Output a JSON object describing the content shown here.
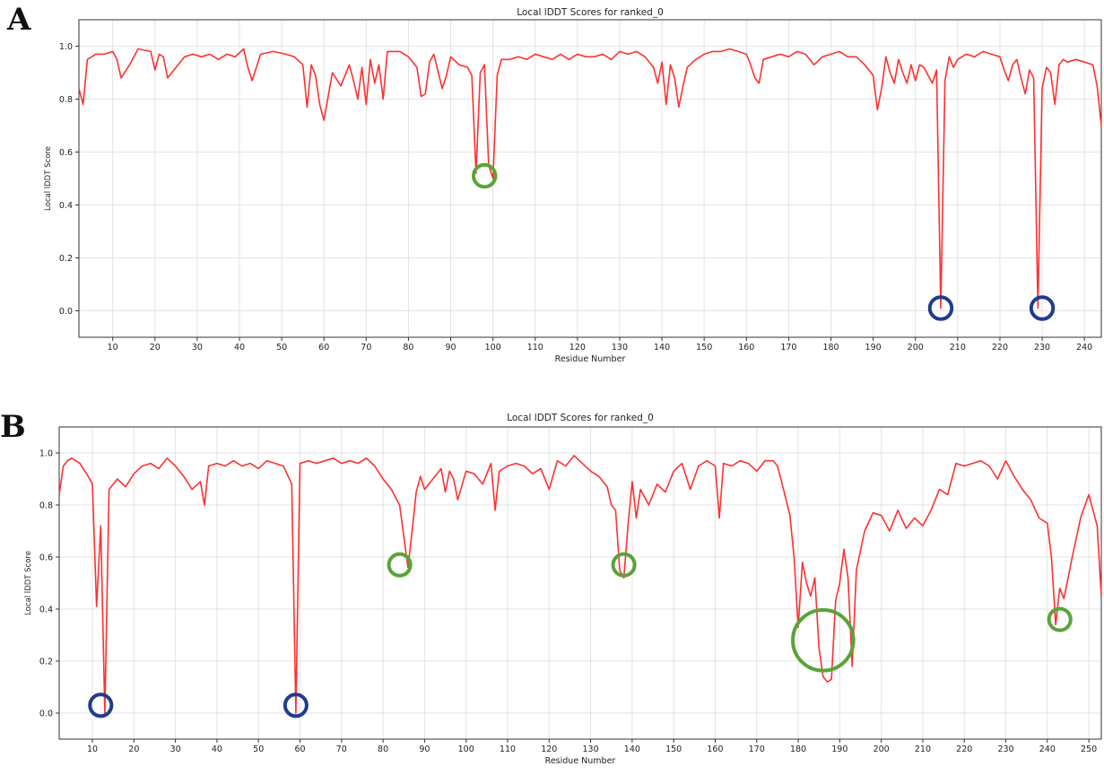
{
  "figure": {
    "panels": [
      {
        "letter": "A"
      },
      {
        "letter": "B"
      }
    ]
  },
  "chart_data": [
    {
      "type": "line",
      "title": "Local lDDT Scores for ranked_0",
      "xlabel": "Residue Number",
      "ylabel": "Local lDDT Score",
      "xlim": [
        2,
        244
      ],
      "ylim": [
        -0.1,
        1.1
      ],
      "xticks": [
        10,
        20,
        30,
        40,
        50,
        60,
        70,
        80,
        90,
        100,
        110,
        120,
        130,
        140,
        150,
        160,
        170,
        180,
        190,
        200,
        210,
        220,
        230,
        240
      ],
      "yticks": [
        0.0,
        0.2,
        0.4,
        0.6,
        0.8,
        1.0
      ],
      "grid": true,
      "line_color": "#ff3030",
      "series": [
        {
          "x": [
            2,
            3,
            4,
            6,
            8,
            10,
            11,
            12,
            14,
            16,
            19,
            20,
            21,
            22,
            23,
            25,
            27,
            29,
            31,
            33,
            35,
            37,
            39,
            41,
            42,
            43,
            45,
            48,
            51,
            53,
            55,
            56,
            57,
            58,
            59,
            60,
            62,
            64,
            66,
            67,
            68,
            69,
            70,
            71,
            72,
            73,
            74,
            75,
            76,
            78,
            80,
            82,
            83,
            84,
            85,
            86,
            88,
            89,
            90,
            92,
            94,
            95,
            96,
            97,
            98,
            99,
            100,
            101,
            102,
            104,
            106,
            108,
            110,
            112,
            114,
            116,
            118,
            120,
            122,
            124,
            126,
            128,
            130,
            132,
            134,
            136,
            138,
            139,
            140,
            141,
            142,
            143,
            144,
            145,
            146,
            148,
            150,
            152,
            154,
            156,
            158,
            160,
            161,
            162,
            163,
            164,
            166,
            168,
            170,
            172,
            174,
            176,
            178,
            180,
            182,
            184,
            186,
            188,
            190,
            191,
            192,
            193,
            194,
            195,
            196,
            197,
            198,
            199,
            200,
            201,
            202,
            203,
            204,
            205,
            206,
            207,
            208,
            209,
            210,
            212,
            214,
            216,
            218,
            220,
            221,
            222,
            223,
            224,
            225,
            226,
            227,
            228,
            229,
            230,
            231,
            232,
            233,
            234,
            235,
            236,
            238,
            240,
            242,
            243,
            244
          ],
          "y": [
            0.84,
            0.78,
            0.95,
            0.97,
            0.97,
            0.98,
            0.95,
            0.88,
            0.93,
            0.99,
            0.98,
            0.91,
            0.97,
            0.96,
            0.88,
            0.92,
            0.96,
            0.97,
            0.96,
            0.97,
            0.95,
            0.97,
            0.96,
            0.99,
            0.92,
            0.87,
            0.97,
            0.98,
            0.97,
            0.96,
            0.93,
            0.77,
            0.93,
            0.89,
            0.78,
            0.72,
            0.9,
            0.85,
            0.93,
            0.87,
            0.8,
            0.92,
            0.78,
            0.95,
            0.86,
            0.93,
            0.8,
            0.98,
            0.98,
            0.98,
            0.96,
            0.92,
            0.81,
            0.82,
            0.94,
            0.97,
            0.84,
            0.89,
            0.96,
            0.93,
            0.92,
            0.89,
            0.52,
            0.9,
            0.93,
            0.55,
            0.5,
            0.89,
            0.95,
            0.95,
            0.96,
            0.95,
            0.97,
            0.96,
            0.95,
            0.97,
            0.95,
            0.97,
            0.96,
            0.96,
            0.97,
            0.95,
            0.98,
            0.97,
            0.98,
            0.96,
            0.92,
            0.86,
            0.94,
            0.78,
            0.93,
            0.88,
            0.77,
            0.85,
            0.92,
            0.95,
            0.97,
            0.98,
            0.98,
            0.99,
            0.98,
            0.97,
            0.93,
            0.88,
            0.86,
            0.95,
            0.96,
            0.97,
            0.96,
            0.98,
            0.97,
            0.93,
            0.96,
            0.97,
            0.98,
            0.96,
            0.96,
            0.93,
            0.89,
            0.76,
            0.84,
            0.96,
            0.9,
            0.86,
            0.95,
            0.9,
            0.86,
            0.93,
            0.87,
            0.93,
            0.92,
            0.89,
            0.86,
            0.91,
            0.01,
            0.87,
            0.96,
            0.92,
            0.95,
            0.97,
            0.96,
            0.98,
            0.97,
            0.96,
            0.91,
            0.87,
            0.93,
            0.95,
            0.88,
            0.82,
            0.91,
            0.88,
            0.01,
            0.84,
            0.92,
            0.9,
            0.78,
            0.93,
            0.95,
            0.94,
            0.95,
            0.94,
            0.93,
            0.85,
            0.7
          ]
        }
      ]
    },
    {
      "type": "line",
      "title": "Local lDDT Scores for ranked_0",
      "xlabel": "Residue Number",
      "ylabel": "Local lDDT Score",
      "xlim": [
        2,
        253
      ],
      "ylim": [
        -0.1,
        1.1
      ],
      "xticks": [
        10,
        20,
        30,
        40,
        50,
        60,
        70,
        80,
        90,
        100,
        110,
        120,
        130,
        140,
        150,
        160,
        170,
        180,
        190,
        200,
        210,
        220,
        230,
        240,
        250
      ],
      "yticks": [
        0.0,
        0.2,
        0.4,
        0.6,
        0.8,
        1.0
      ],
      "grid": true,
      "line_color": "#ff3030",
      "series": [
        {
          "x": [
            2,
            3,
            4,
            5,
            7,
            9,
            10,
            11,
            12,
            13,
            14,
            16,
            18,
            20,
            22,
            24,
            26,
            28,
            30,
            32,
            34,
            36,
            37,
            38,
            40,
            42,
            44,
            46,
            48,
            50,
            52,
            54,
            56,
            58,
            59,
            60,
            62,
            64,
            66,
            68,
            70,
            72,
            74,
            76,
            78,
            80,
            82,
            84,
            86,
            87,
            88,
            89,
            90,
            92,
            94,
            95,
            96,
            97,
            98,
            100,
            102,
            104,
            106,
            107,
            108,
            110,
            112,
            114,
            116,
            118,
            120,
            122,
            124,
            126,
            128,
            130,
            132,
            134,
            135,
            136,
            137,
            138,
            139,
            140,
            141,
            142,
            144,
            146,
            148,
            150,
            152,
            154,
            156,
            158,
            160,
            161,
            162,
            164,
            166,
            168,
            170,
            172,
            174,
            175,
            176,
            178,
            179,
            180,
            181,
            182,
            183,
            184,
            185,
            186,
            187,
            188,
            189,
            190,
            191,
            192,
            193,
            194,
            196,
            198,
            200,
            202,
            204,
            206,
            208,
            210,
            212,
            214,
            216,
            218,
            220,
            222,
            224,
            226,
            228,
            230,
            232,
            234,
            236,
            238,
            240,
            241,
            242,
            243,
            244,
            245,
            246,
            248,
            250,
            252,
            253
          ],
          "y": [
            0.84,
            0.95,
            0.97,
            0.98,
            0.96,
            0.91,
            0.88,
            0.41,
            0.72,
            0.0,
            0.86,
            0.9,
            0.87,
            0.92,
            0.95,
            0.96,
            0.94,
            0.98,
            0.95,
            0.91,
            0.86,
            0.89,
            0.8,
            0.95,
            0.96,
            0.95,
            0.97,
            0.95,
            0.96,
            0.94,
            0.97,
            0.96,
            0.95,
            0.88,
            0.0,
            0.96,
            0.97,
            0.96,
            0.97,
            0.98,
            0.96,
            0.97,
            0.96,
            0.98,
            0.95,
            0.9,
            0.86,
            0.8,
            0.56,
            0.7,
            0.85,
            0.91,
            0.86,
            0.9,
            0.94,
            0.85,
            0.93,
            0.9,
            0.82,
            0.93,
            0.92,
            0.88,
            0.96,
            0.78,
            0.93,
            0.95,
            0.96,
            0.95,
            0.92,
            0.94,
            0.86,
            0.97,
            0.95,
            0.99,
            0.96,
            0.93,
            0.91,
            0.87,
            0.8,
            0.78,
            0.55,
            0.52,
            0.72,
            0.89,
            0.75,
            0.86,
            0.8,
            0.88,
            0.85,
            0.93,
            0.96,
            0.86,
            0.95,
            0.97,
            0.95,
            0.75,
            0.96,
            0.95,
            0.97,
            0.96,
            0.93,
            0.97,
            0.97,
            0.95,
            0.89,
            0.76,
            0.6,
            0.33,
            0.58,
            0.5,
            0.45,
            0.52,
            0.25,
            0.14,
            0.12,
            0.13,
            0.43,
            0.5,
            0.63,
            0.52,
            0.18,
            0.55,
            0.7,
            0.77,
            0.76,
            0.7,
            0.78,
            0.71,
            0.75,
            0.72,
            0.78,
            0.86,
            0.84,
            0.96,
            0.95,
            0.96,
            0.97,
            0.95,
            0.9,
            0.97,
            0.91,
            0.86,
            0.82,
            0.75,
            0.73,
            0.6,
            0.34,
            0.48,
            0.44,
            0.52,
            0.6,
            0.75,
            0.84,
            0.72,
            0.45
          ]
        }
      ]
    }
  ],
  "highlights": [
    {
      "panel": 0,
      "color": "#5aa33a",
      "x": 98,
      "y": 0.51,
      "r": 2.6
    },
    {
      "panel": 0,
      "color": "#1f3d8c",
      "x": 206,
      "y": 0.01,
      "r": 2.6
    },
    {
      "panel": 0,
      "color": "#1f3d8c",
      "x": 230,
      "y": 0.01,
      "r": 2.6
    },
    {
      "panel": 1,
      "color": "#1f3d8c",
      "x": 12,
      "y": 0.03,
      "r": 2.6
    },
    {
      "panel": 1,
      "color": "#1f3d8c",
      "x": 59,
      "y": 0.03,
      "r": 2.6
    },
    {
      "panel": 1,
      "color": "#5aa33a",
      "x": 84,
      "y": 0.57,
      "r": 2.6
    },
    {
      "panel": 1,
      "color": "#5aa33a",
      "x": 138,
      "y": 0.57,
      "r": 2.6
    },
    {
      "panel": 1,
      "color": "#5aa33a",
      "x": 186,
      "y": 0.28,
      "r": 7.3
    },
    {
      "panel": 1,
      "color": "#5aa33a",
      "x": 243,
      "y": 0.36,
      "r": 2.6
    }
  ]
}
